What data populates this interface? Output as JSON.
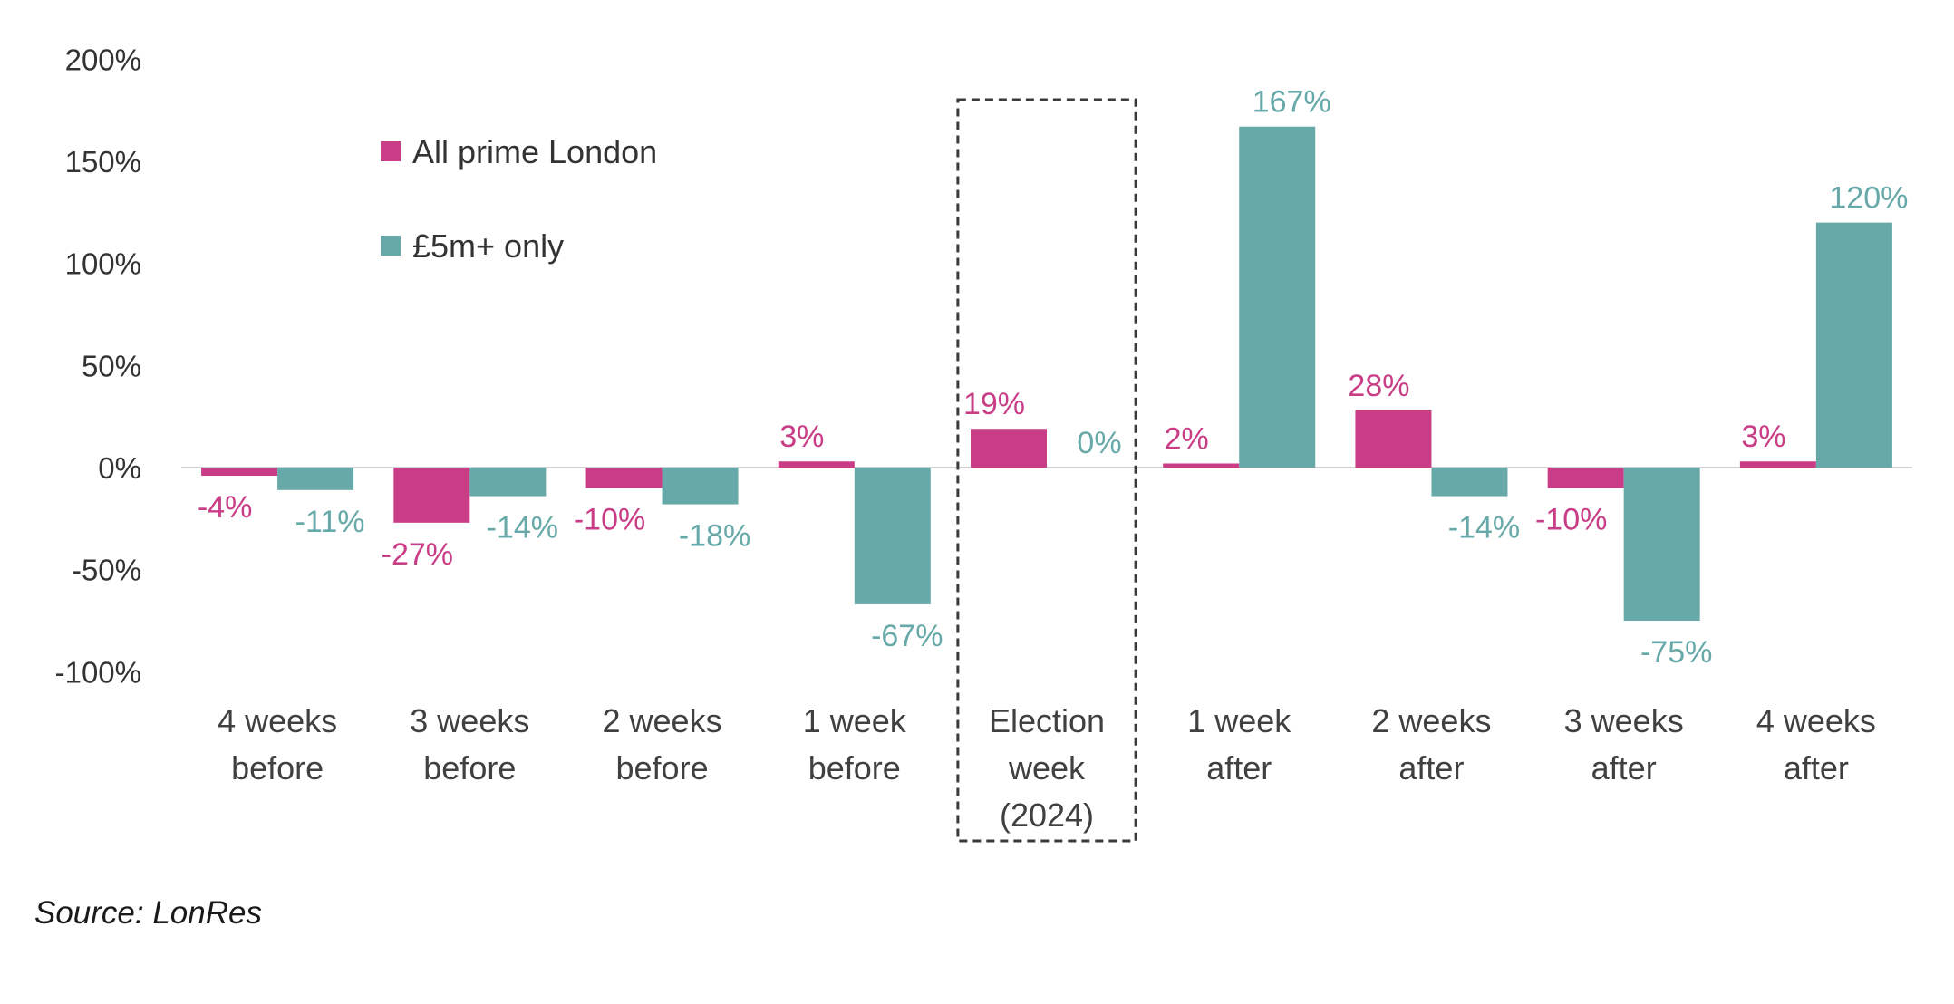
{
  "chart_data": {
    "type": "bar",
    "categories": [
      [
        "4 weeks",
        "before"
      ],
      [
        "3 weeks",
        "before"
      ],
      [
        "2 weeks",
        "before"
      ],
      [
        "1 week",
        "before"
      ],
      [
        "Election",
        "week",
        "(2024)"
      ],
      [
        "1 week",
        "after"
      ],
      [
        "2 weeks",
        "after"
      ],
      [
        "3 weeks",
        "after"
      ],
      [
        "4 weeks",
        "after"
      ]
    ],
    "series": [
      {
        "name": "All prime London",
        "color": "#c93d87",
        "values": [
          -4,
          -27,
          -10,
          3,
          19,
          2,
          28,
          -10,
          3
        ],
        "labels": [
          "-4%",
          "-27%",
          "-10%",
          "3%",
          "19%",
          "2%",
          "28%",
          "-10%",
          "3%"
        ]
      },
      {
        "name": "£5m+ only",
        "color": "#66a9a8",
        "values": [
          -11,
          -14,
          -18,
          -67,
          0,
          167,
          -14,
          -75,
          120
        ],
        "labels": [
          "-11%",
          "-14%",
          "-18%",
          "-67%",
          "0%",
          "167%",
          "-14%",
          "-75%",
          "120%"
        ]
      }
    ],
    "y_ticks": [
      "200%",
      "150%",
      "100%",
      "50%",
      "0%",
      "-50%",
      "-100%"
    ],
    "y_tick_values": [
      200,
      150,
      100,
      50,
      0,
      -50,
      -100
    ],
    "ylim": [
      -100,
      200
    ],
    "highlight_category": 4,
    "legend_position": "top-left",
    "xlabel": "",
    "ylabel": ""
  },
  "source": "Source: LonRes"
}
